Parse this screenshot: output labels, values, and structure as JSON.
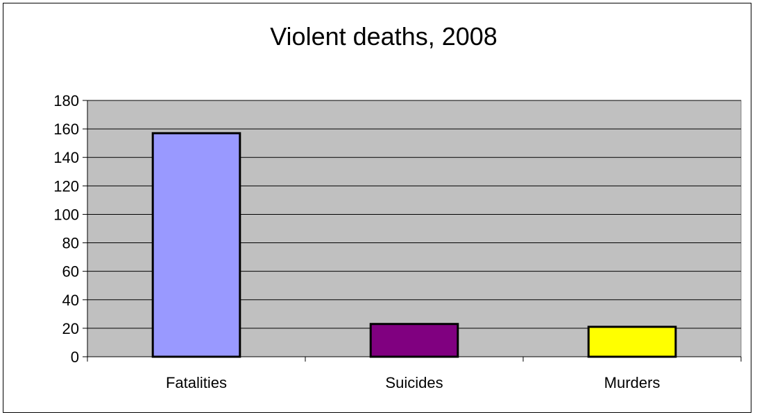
{
  "chart_data": {
    "type": "bar",
    "title": "Violent deaths, 2008",
    "categories": [
      "Fatalities",
      "Suicides",
      "Murders"
    ],
    "values": [
      157,
      23,
      21
    ],
    "bar_colors": [
      "#9999FF",
      "#800080",
      "#FFFF00"
    ],
    "plot_background": "#C0C0C0",
    "ylim": [
      0,
      180
    ],
    "yticks": [
      0,
      20,
      40,
      60,
      80,
      100,
      120,
      140,
      160,
      180
    ],
    "grid": true,
    "legend": "none",
    "xlabel": "",
    "ylabel": ""
  }
}
